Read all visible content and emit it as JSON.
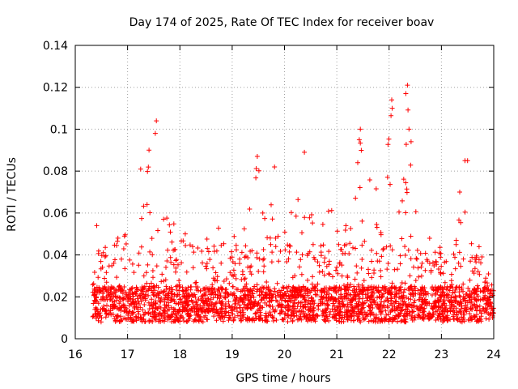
{
  "chart_data": {
    "type": "scatter",
    "title": "Day 174 of 2025, Rate Of TEC Index for receiver boav",
    "xlabel": "GPS time / hours",
    "ylabel": "ROTI / TECUs",
    "xlim": [
      16,
      24
    ],
    "ylim": [
      0,
      0.14
    ],
    "xticks": [
      16,
      17,
      18,
      19,
      20,
      21,
      22,
      23,
      24
    ],
    "yticks": [
      0,
      0.02,
      0.04,
      0.06,
      0.08,
      0.1,
      0.12,
      0.14
    ],
    "xtick_labels": [
      "16",
      "17",
      "18",
      "19",
      "20",
      "21",
      "22",
      "23",
      "24"
    ],
    "ytick_labels": [
      "0",
      "0.02",
      "0.04",
      "0.06",
      "0.08",
      "0.1",
      "0.12",
      "0.14"
    ],
    "grid": true,
    "marker": "+",
    "color": "#ff0000",
    "series": [
      {
        "name": "ROTI",
        "x_start": 16.33,
        "x_end": 24.0,
        "baseline_band": [
          0.008,
          0.025
        ],
        "envelope": [
          [
            16.35,
            0.03
          ],
          [
            16.4,
            0.054
          ],
          [
            16.5,
            0.045
          ],
          [
            16.7,
            0.042
          ],
          [
            16.95,
            0.06
          ],
          [
            17.1,
            0.065
          ],
          [
            17.2,
            0.075
          ],
          [
            17.3,
            0.081
          ],
          [
            17.4,
            0.09
          ],
          [
            17.55,
            0.104
          ],
          [
            17.7,
            0.066
          ],
          [
            17.95,
            0.062
          ],
          [
            18.3,
            0.045
          ],
          [
            18.7,
            0.055
          ],
          [
            19.0,
            0.05
          ],
          [
            19.3,
            0.06
          ],
          [
            19.5,
            0.087
          ],
          [
            19.6,
            0.07
          ],
          [
            19.8,
            0.082
          ],
          [
            20.0,
            0.055
          ],
          [
            20.2,
            0.07
          ],
          [
            20.35,
            0.089
          ],
          [
            20.6,
            0.054
          ],
          [
            20.8,
            0.068
          ],
          [
            21.1,
            0.05
          ],
          [
            21.35,
            0.085
          ],
          [
            21.45,
            0.101
          ],
          [
            21.7,
            0.07
          ],
          [
            21.95,
            0.09
          ],
          [
            22.05,
            0.114
          ],
          [
            22.2,
            0.06
          ],
          [
            22.35,
            0.121
          ],
          [
            22.45,
            0.09
          ],
          [
            22.7,
            0.05
          ],
          [
            23.0,
            0.045
          ],
          [
            23.3,
            0.07
          ],
          [
            23.45,
            0.085
          ],
          [
            23.6,
            0.05
          ],
          [
            23.8,
            0.04
          ],
          [
            24.0,
            0.026
          ]
        ],
        "sample_points": [
          [
            16.41,
            0.054
          ],
          [
            17.25,
            0.081
          ],
          [
            17.41,
            0.09
          ],
          [
            17.55,
            0.104
          ],
          [
            17.53,
            0.098
          ],
          [
            19.48,
            0.087
          ],
          [
            19.81,
            0.082
          ],
          [
            20.38,
            0.089
          ],
          [
            21.45,
            0.1
          ],
          [
            21.43,
            0.095
          ],
          [
            22.05,
            0.114
          ],
          [
            22.06,
            0.11
          ],
          [
            22.35,
            0.121
          ],
          [
            22.32,
            0.117
          ],
          [
            22.38,
            0.1
          ],
          [
            23.45,
            0.085
          ],
          [
            23.5,
            0.085
          ],
          [
            23.35,
            0.07
          ],
          [
            22.42,
            0.094
          ],
          [
            21.4,
            0.084
          ]
        ]
      }
    ]
  }
}
